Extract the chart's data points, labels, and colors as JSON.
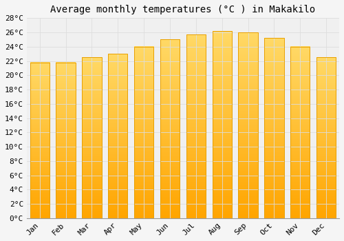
{
  "title": "Average monthly temperatures (°C ) in Makakilo",
  "months": [
    "Jan",
    "Feb",
    "Mar",
    "Apr",
    "May",
    "Jun",
    "Jul",
    "Aug",
    "Sep",
    "Oct",
    "Nov",
    "Dec"
  ],
  "values": [
    21.8,
    21.8,
    22.5,
    23.0,
    24.0,
    25.0,
    25.7,
    26.2,
    26.0,
    25.2,
    24.0,
    22.5
  ],
  "bar_color_top": "#FFD966",
  "bar_color_bottom": "#FFA500",
  "bar_edge_color": "#E8A000",
  "background_color": "#F5F5F5",
  "plot_bg_color": "#F0F0F0",
  "grid_color": "#DDDDDD",
  "ylim": [
    0,
    28
  ],
  "ytick_step": 2,
  "title_fontsize": 10,
  "tick_fontsize": 8,
  "font_family": "monospace"
}
